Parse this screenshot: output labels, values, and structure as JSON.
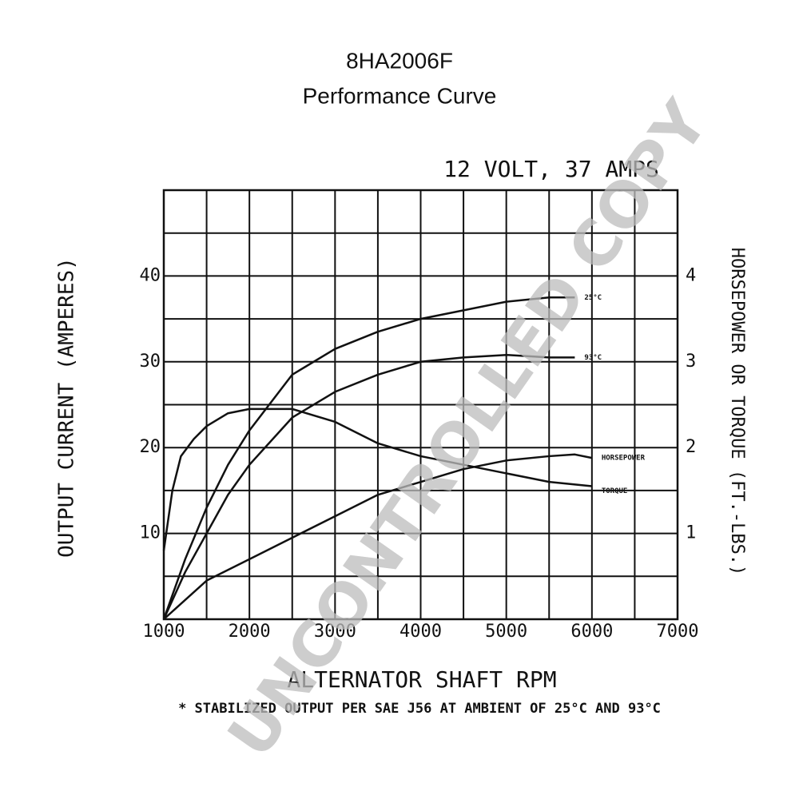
{
  "chart_data": {
    "type": "line",
    "title": "8HA2006F",
    "subtitle": "Performance Curve",
    "chart_title": "12 VOLT, 37 AMPS",
    "x_label": "ALTERNATOR SHAFT RPM",
    "y_label": "OUTPUT CURRENT (AMPERES)",
    "y2_label": "HORSEPOWER OR TORQUE (FT.-LBS.)",
    "footnote": "* STABILIZED OUTPUT PER SAE J56 AT AMBIENT OF 25°C AND 93°C",
    "watermark": "UNCONTROLLED COPY",
    "xlim": [
      1000,
      7000
    ],
    "xticks": [
      1000,
      2000,
      3000,
      4000,
      5000,
      6000,
      7000
    ],
    "xgrid": [
      1500,
      2500,
      3500,
      4500,
      5500,
      6500
    ],
    "ylim": [
      0,
      50
    ],
    "yticks": [
      10,
      20,
      30,
      40
    ],
    "ygrid": [
      5,
      15,
      25,
      35,
      45
    ],
    "y2lim": [
      0,
      5
    ],
    "y2ticks": [
      1,
      2,
      3,
      4
    ],
    "grid": true,
    "series": [
      {
        "name": "25°C",
        "color": "#111111",
        "x": [
          1000,
          1250,
          1500,
          1750,
          2000,
          2500,
          3000,
          3500,
          4000,
          4500,
          5000,
          5500,
          5800
        ],
        "values": [
          0,
          7,
          13,
          18,
          22,
          28.5,
          31.5,
          33.5,
          35,
          36,
          37,
          37.5,
          37.5
        ]
      },
      {
        "name": "93°C",
        "color": "#111111",
        "x": [
          1000,
          1250,
          1500,
          1750,
          2000,
          2500,
          3000,
          3500,
          4000,
          4500,
          5000,
          5500,
          5800
        ],
        "values": [
          0,
          5.5,
          10,
          14.5,
          18,
          23.5,
          26.5,
          28.5,
          30,
          30.5,
          30.8,
          30.5,
          30.5
        ]
      },
      {
        "name": "TORQUE",
        "color": "#111111",
        "axis": "y2",
        "x": [
          1000,
          1100,
          1200,
          1350,
          1500,
          1750,
          2000,
          2500,
          3000,
          3500,
          4000,
          4500,
          5000,
          5500,
          6000
        ],
        "values": [
          0.8,
          1.5,
          1.9,
          2.1,
          2.25,
          2.4,
          2.45,
          2.45,
          2.3,
          2.05,
          1.9,
          1.8,
          1.7,
          1.6,
          1.55
        ]
      },
      {
        "name": "HORSEPOWER",
        "color": "#111111",
        "axis": "y2",
        "x": [
          1000,
          1500,
          2000,
          2500,
          3000,
          3500,
          4000,
          4500,
          5000,
          5500,
          5800,
          6000
        ],
        "values": [
          0,
          0.45,
          0.7,
          0.95,
          1.2,
          1.45,
          1.6,
          1.75,
          1.85,
          1.9,
          1.92,
          1.88
        ]
      }
    ]
  }
}
